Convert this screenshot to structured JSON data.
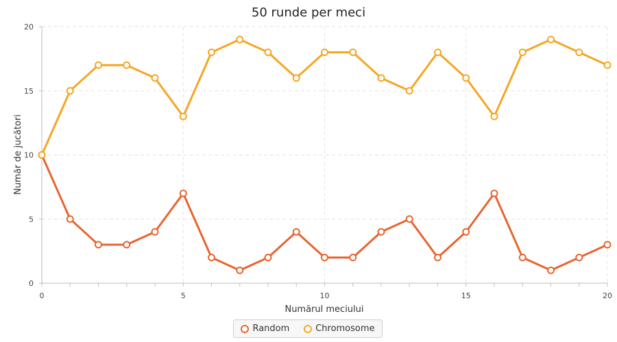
{
  "chart_data": {
    "type": "line",
    "title": "50 runde per meci",
    "xlabel": "Numărul meciului",
    "ylabel": "Număr de jucători",
    "xlim": [
      0,
      20
    ],
    "ylim": [
      0,
      20
    ],
    "x_ticks": [
      "0",
      "5",
      "10",
      "15",
      "20"
    ],
    "y_ticks": [
      "0",
      "5",
      "10",
      "15",
      "20"
    ],
    "grid": true,
    "legend_position": "bottom-center",
    "x": [
      0,
      1,
      2,
      3,
      4,
      5,
      6,
      7,
      8,
      9,
      10,
      11,
      12,
      13,
      14,
      15,
      16,
      17,
      18,
      19,
      20
    ],
    "series": [
      {
        "name": "Random",
        "color": "#e8642f",
        "values": [
          10,
          5,
          3,
          3,
          4,
          7,
          2,
          1,
          2,
          4,
          2,
          2,
          4,
          5,
          2,
          4,
          7,
          2,
          1,
          2,
          3
        ]
      },
      {
        "name": "Chromosome",
        "color": "#f5a623",
        "values": [
          10,
          15,
          17,
          17,
          16,
          13,
          18,
          19,
          18,
          16,
          18,
          18,
          16,
          15,
          18,
          16,
          13,
          18,
          19,
          18,
          17
        ]
      }
    ]
  }
}
